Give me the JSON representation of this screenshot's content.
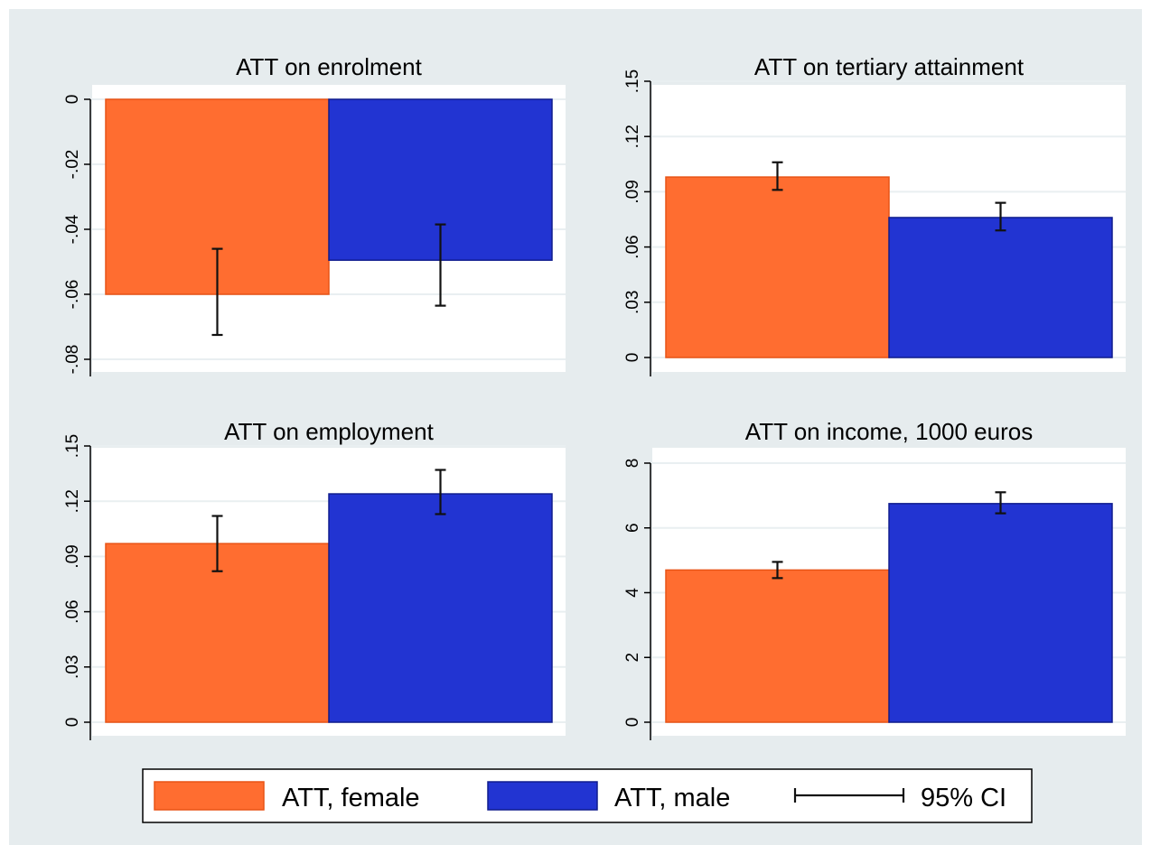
{
  "colors": {
    "female": "#ff6d30",
    "female_edge": "#e95416",
    "male": "#2234d2",
    "male_edge": "#101d8e",
    "background": "#e6ecee",
    "ci": "#111111"
  },
  "legend": {
    "position": "bottom",
    "items": [
      {
        "label": "ATT, female",
        "kind": "bar",
        "color": "#ff6d30"
      },
      {
        "label": "ATT, male",
        "kind": "bar",
        "color": "#2234d2"
      },
      {
        "label": "95% CI",
        "kind": "ci"
      }
    ]
  },
  "chart_data": [
    {
      "type": "bar",
      "title": "ATT on enrolment",
      "categories": [
        "ATT, female",
        "ATT, male"
      ],
      "values": [
        -0.06,
        -0.0495
      ],
      "ci_lower": [
        -0.0725,
        -0.0635
      ],
      "ci_upper": [
        -0.046,
        -0.0385
      ],
      "ylim": [
        -0.08,
        0
      ],
      "yticks": [
        0,
        -0.02,
        -0.04,
        -0.06,
        -0.08
      ],
      "ytick_labels": [
        "0",
        "-.02",
        "-.04",
        "-.06",
        "-.08"
      ],
      "grid": true
    },
    {
      "type": "bar",
      "title": "ATT on tertiary attainment",
      "categories": [
        "ATT, female",
        "ATT, male"
      ],
      "values": [
        0.098,
        0.076
      ],
      "ci_lower": [
        0.091,
        0.069
      ],
      "ci_upper": [
        0.106,
        0.084
      ],
      "ylim": [
        0,
        0.15
      ],
      "yticks": [
        0,
        0.03,
        0.06,
        0.09,
        0.12,
        0.15
      ],
      "ytick_labels": [
        "0",
        ".03",
        ".06",
        ".09",
        ".12",
        ".15"
      ],
      "grid": true
    },
    {
      "type": "bar",
      "title": "ATT on employment",
      "categories": [
        "ATT, female",
        "ATT, male"
      ],
      "values": [
        0.097,
        0.124
      ],
      "ci_lower": [
        0.082,
        0.113
      ],
      "ci_upper": [
        0.112,
        0.137
      ],
      "ylim": [
        0,
        0.15
      ],
      "yticks": [
        0,
        0.03,
        0.06,
        0.09,
        0.12,
        0.15
      ],
      "ytick_labels": [
        "0",
        ".03",
        ".06",
        ".09",
        ".12",
        ".15"
      ],
      "grid": true
    },
    {
      "type": "bar",
      "title": "ATT on income, 1000 euros",
      "categories": [
        "ATT, female",
        "ATT, male"
      ],
      "values": [
        4.7,
        6.75
      ],
      "ci_lower": [
        4.45,
        6.45
      ],
      "ci_upper": [
        4.95,
        7.1
      ],
      "ylim": [
        0,
        8
      ],
      "yticks": [
        0,
        2,
        4,
        6,
        8
      ],
      "ytick_labels": [
        "0",
        "2",
        "4",
        "6",
        "8"
      ],
      "grid": true
    }
  ]
}
